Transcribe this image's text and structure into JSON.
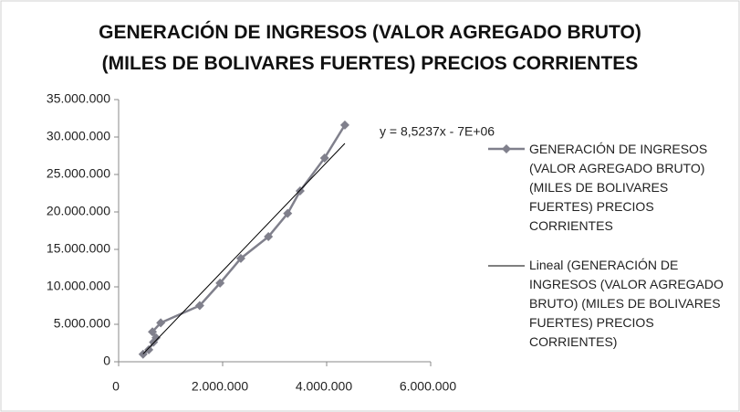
{
  "chart_data": {
    "type": "scatter",
    "title": [
      "GENERACIÓN DE INGRESOS (VALOR AGREGADO BRUTO)",
      "(MILES DE BOLIVARES FUERTES) PRECIOS CORRIENTES"
    ],
    "x": [
      470000,
      580000,
      670000,
      720000,
      650000,
      810000,
      1560000,
      1950000,
      2350000,
      2880000,
      3250000,
      3490000,
      3960000,
      4350000
    ],
    "series": [
      {
        "name": "GENERACIÓN DE INGRESOS (VALOR AGREGADO BRUTO) (MILES DE BOLIVARES FUERTES) PRECIOS CORRIENTES",
        "color": "#80808c",
        "values": [
          1000000,
          1600000,
          2600000,
          3200000,
          4000000,
          5200000,
          7500000,
          10500000,
          13800000,
          16700000,
          19800000,
          22800000,
          27200000,
          31600000
        ]
      }
    ],
    "trendline": {
      "name": "Lineal (GENERACIÓN DE INGRESOS (VALOR AGREGADO BRUTO) (MILES DE BOLIVARES FUERTES) PRECIOS CORRIENTES)",
      "color": "#000000",
      "equation": "y = 8,5237x - 7E+06"
    },
    "xlim": [
      0,
      6000000
    ],
    "xticks": [
      0,
      {
        "value": 2000000,
        "label": "2.000.000"
      },
      {
        "value": 4000000,
        "label": "4.000.000"
      },
      {
        "value": 6000000,
        "label": "6.000.000"
      }
    ],
    "ylim": [
      0,
      35000000
    ],
    "yticks": [
      0,
      {
        "value": 5000000,
        "label": "5.000.000"
      },
      {
        "value": 10000000,
        "label": "10.000.000"
      },
      {
        "value": 15000000,
        "label": "15.000.000"
      },
      {
        "value": 20000000,
        "label": "20.000.000"
      },
      {
        "value": 25000000,
        "label": "25.000.000"
      },
      {
        "value": 30000000,
        "label": "30.000.000"
      },
      {
        "value": 35000000,
        "label": "35.000.000"
      }
    ],
    "legend": "right"
  }
}
